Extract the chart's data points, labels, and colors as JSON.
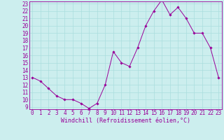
{
  "x": [
    0,
    1,
    2,
    3,
    4,
    5,
    6,
    7,
    8,
    9,
    10,
    11,
    12,
    13,
    14,
    15,
    16,
    17,
    18,
    19,
    20,
    21,
    22,
    23
  ],
  "y": [
    13,
    12.5,
    11.5,
    10.5,
    10,
    10,
    9.5,
    8.8,
    9.5,
    12,
    16.5,
    15,
    14.5,
    17,
    20,
    22,
    23.5,
    21.5,
    22.5,
    21,
    19,
    19,
    17,
    13
  ],
  "line_color": "#990099",
  "marker_color": "#990099",
  "bg_color": "#cceeee",
  "grid_color": "#aadddd",
  "axis_label_color": "#990099",
  "tick_label_color": "#990099",
  "xlabel": "Windchill (Refroidissement éolien,°C)",
  "ylim_min": 9,
  "ylim_max": 23,
  "xlim_min": 0,
  "xlim_max": 23,
  "yticks": [
    9,
    10,
    11,
    12,
    13,
    14,
    15,
    16,
    17,
    18,
    19,
    20,
    21,
    22,
    23
  ],
  "xticks": [
    0,
    1,
    2,
    3,
    4,
    5,
    6,
    7,
    8,
    9,
    10,
    11,
    12,
    13,
    14,
    15,
    16,
    17,
    18,
    19,
    20,
    21,
    22,
    23
  ],
  "font_size": 5.5,
  "xlabel_font_size": 6,
  "line_width": 0.7,
  "marker_size": 1.8
}
